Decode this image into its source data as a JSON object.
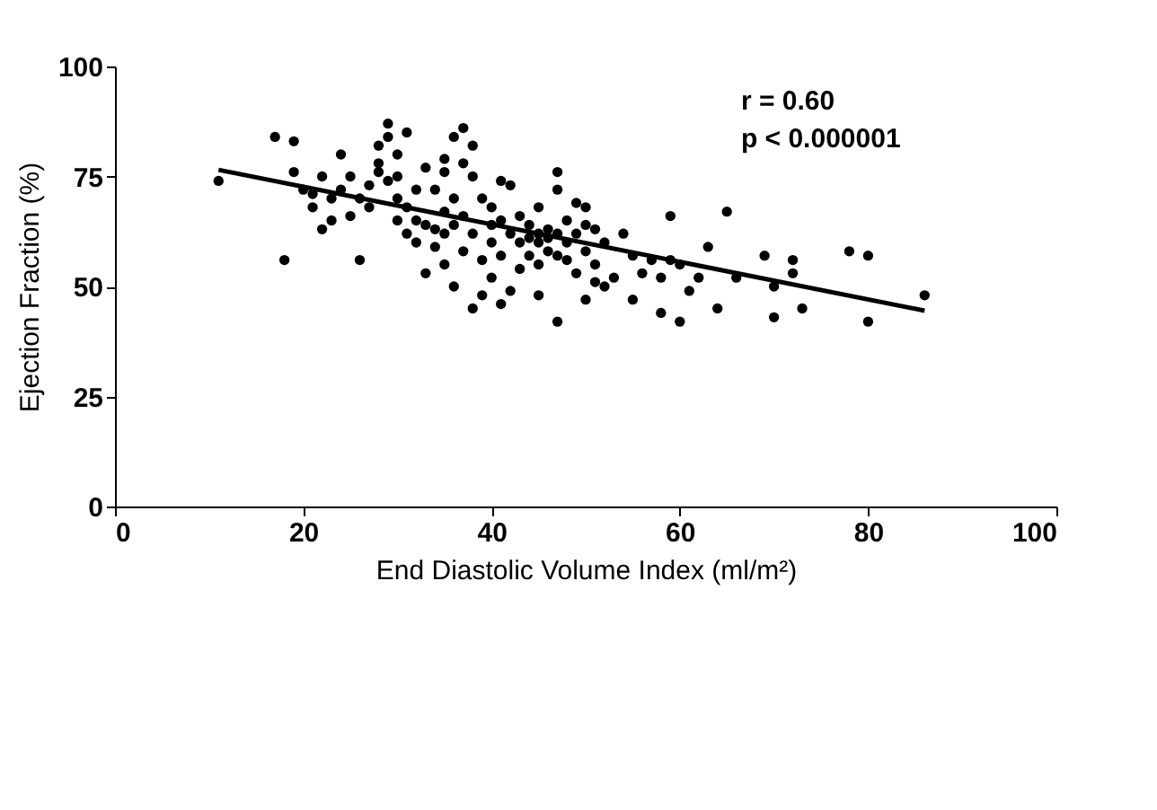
{
  "chart_data": {
    "type": "scatter",
    "xlabel": "End Diastolic Volume Index (ml/m²)",
    "ylabel": "Ejection Fraction (%)",
    "xlim": [
      0,
      100
    ],
    "xticks": [
      0,
      20,
      40,
      60,
      80,
      100
    ],
    "ylim": [
      0,
      100
    ],
    "yticks": [
      0,
      25,
      50,
      75,
      100
    ],
    "grid": false,
    "annotations": [
      "r = 0.60",
      "p < 0.000001"
    ],
    "series": [
      {
        "color": "#000000",
        "marker": "circle",
        "x": [
          11,
          17,
          19,
          18,
          19,
          20,
          21,
          21,
          22,
          22,
          23,
          23,
          24,
          24,
          25,
          25,
          26,
          26,
          27,
          27,
          28,
          28,
          28,
          29,
          29,
          29,
          30,
          30,
          30,
          30,
          31,
          31,
          31,
          32,
          32,
          32,
          33,
          33,
          33,
          34,
          34,
          34,
          35,
          35,
          35,
          35,
          35,
          36,
          36,
          36,
          36,
          37,
          37,
          37,
          37,
          38,
          38,
          38,
          38,
          39,
          39,
          39,
          40,
          40,
          40,
          40,
          41,
          41,
          41,
          41,
          42,
          42,
          42,
          43,
          43,
          43,
          44,
          44,
          44,
          45,
          45,
          45,
          45,
          45,
          46,
          46,
          46,
          47,
          47,
          47,
          47,
          47,
          48,
          48,
          48,
          49,
          49,
          49,
          50,
          50,
          50,
          50,
          51,
          51,
          51,
          52,
          52,
          53,
          54,
          55,
          55,
          56,
          57,
          58,
          58,
          59,
          59,
          60,
          60,
          61,
          62,
          63,
          64,
          65,
          66,
          69,
          70,
          70,
          72,
          72,
          73,
          78,
          80,
          80,
          86
        ],
        "values": [
          74,
          84,
          83,
          56,
          76,
          72,
          71,
          68,
          75,
          63,
          70,
          65,
          80,
          72,
          66,
          75,
          56,
          70,
          68,
          73,
          78,
          82,
          76,
          87,
          84,
          74,
          75,
          70,
          65,
          80,
          85,
          68,
          62,
          60,
          72,
          65,
          53,
          64,
          77,
          63,
          72,
          59,
          79,
          76,
          67,
          62,
          55,
          84,
          70,
          64,
          50,
          86,
          78,
          66,
          58,
          82,
          75,
          45,
          62,
          70,
          56,
          48,
          68,
          64,
          60,
          52,
          74,
          65,
          57,
          46,
          73,
          62,
          49,
          60,
          66,
          54,
          64,
          61,
          57,
          68,
          60,
          62,
          55,
          48,
          63,
          58,
          61,
          76,
          72,
          62,
          57,
          42,
          65,
          60,
          56,
          69,
          62,
          53,
          68,
          64,
          58,
          47,
          63,
          55,
          51,
          60,
          50,
          52,
          62,
          57,
          47,
          53,
          56,
          52,
          44,
          66,
          56,
          55,
          42,
          49,
          52,
          59,
          45,
          67,
          52,
          57,
          43,
          50,
          56,
          53,
          45,
          58,
          57,
          42,
          48
        ]
      },
      {
        "type": "line",
        "color": "#000000",
        "line_style": "solid",
        "marker": "none",
        "x": [
          11,
          86
        ],
        "values": [
          76.5,
          44.5
        ]
      }
    ]
  }
}
